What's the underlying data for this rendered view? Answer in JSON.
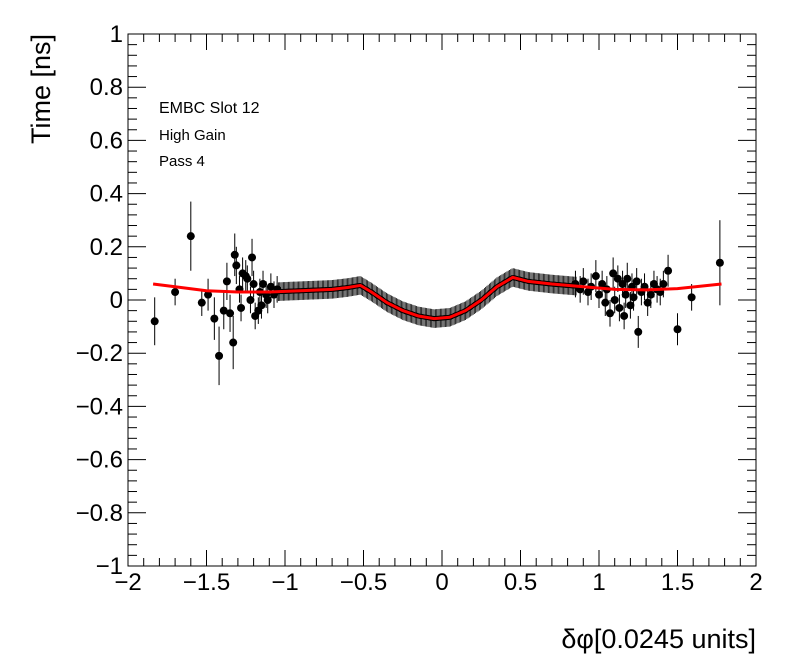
{
  "chart_data": {
    "type": "scatter",
    "xlabel": "δφ[0.0245 units]",
    "ylabel": "Time [ns]",
    "xlim": [
      -2,
      2
    ],
    "ylim": [
      -1,
      1
    ],
    "x_ticks": [
      "−2",
      "−1.5",
      "−1",
      "−0.5",
      "0",
      "0.5",
      "1",
      "1.5",
      "2"
    ],
    "y_ticks": [
      "−1",
      "−0.8",
      "−0.6",
      "−0.4",
      "−0.2",
      "0",
      "0.2",
      "0.4",
      "0.6",
      "0.8",
      "1"
    ],
    "annotations": [
      "EMBC Slot 12",
      "High Gain",
      "Pass 4"
    ],
    "marker_color": "#000000",
    "fit_color": "#ff0000",
    "series": [
      {
        "points": [
          {
            "x": -1.83,
            "y": -0.08,
            "err": 0.09
          },
          {
            "x": -1.7,
            "y": 0.03,
            "err": 0.05
          },
          {
            "x": -1.6,
            "y": 0.24,
            "err": 0.13
          },
          {
            "x": -1.53,
            "y": -0.01,
            "err": 0.05
          },
          {
            "x": -1.49,
            "y": 0.02,
            "err": 0.06
          },
          {
            "x": -1.45,
            "y": -0.07,
            "err": 0.08
          },
          {
            "x": -1.42,
            "y": -0.21,
            "err": 0.11
          },
          {
            "x": -1.39,
            "y": -0.04,
            "err": 0.07
          },
          {
            "x": -1.37,
            "y": 0.07,
            "err": 0.07
          },
          {
            "x": -1.35,
            "y": -0.05,
            "err": 0.07
          },
          {
            "x": -1.33,
            "y": -0.16,
            "err": 0.1
          },
          {
            "x": -1.32,
            "y": 0.17,
            "err": 0.08
          },
          {
            "x": -1.31,
            "y": 0.13,
            "err": 0.07
          },
          {
            "x": -1.29,
            "y": 0.04,
            "err": 0.05
          },
          {
            "x": -1.28,
            "y": -0.03,
            "err": 0.05
          },
          {
            "x": -1.27,
            "y": 0.1,
            "err": 0.06
          },
          {
            "x": -1.25,
            "y": 0.09,
            "err": 0.06
          },
          {
            "x": -1.24,
            "y": 0.08,
            "err": 0.05
          },
          {
            "x": -1.22,
            "y": 0.0,
            "err": 0.05
          },
          {
            "x": -1.21,
            "y": 0.16,
            "err": 0.07
          },
          {
            "x": -1.2,
            "y": 0.06,
            "err": 0.05
          },
          {
            "x": -1.19,
            "y": -0.06,
            "err": 0.05
          },
          {
            "x": -1.17,
            "y": -0.04,
            "err": 0.05
          },
          {
            "x": -1.16,
            "y": 0.03,
            "err": 0.05
          },
          {
            "x": -1.15,
            "y": -0.02,
            "err": 0.05
          },
          {
            "x": -1.14,
            "y": 0.06,
            "err": 0.05
          },
          {
            "x": -1.12,
            "y": 0.02,
            "err": 0.05
          },
          {
            "x": -1.11,
            "y": 0.0,
            "err": 0.05
          },
          {
            "x": -1.09,
            "y": 0.05,
            "err": 0.05
          },
          {
            "x": -1.07,
            "y": 0.02,
            "err": 0.05
          },
          {
            "x": -1.05,
            "y": 0.04,
            "err": 0.05
          },
          {
            "x": 0.85,
            "y": 0.06,
            "err": 0.05
          },
          {
            "x": 0.88,
            "y": 0.04,
            "err": 0.05
          },
          {
            "x": 0.9,
            "y": 0.07,
            "err": 0.05
          },
          {
            "x": 0.93,
            "y": 0.03,
            "err": 0.05
          },
          {
            "x": 0.95,
            "y": 0.05,
            "err": 0.05
          },
          {
            "x": 0.98,
            "y": 0.09,
            "err": 0.06
          },
          {
            "x": 1.0,
            "y": 0.02,
            "err": 0.05
          },
          {
            "x": 1.02,
            "y": 0.06,
            "err": 0.05
          },
          {
            "x": 1.04,
            "y": -0.01,
            "err": 0.05
          },
          {
            "x": 1.05,
            "y": 0.04,
            "err": 0.05
          },
          {
            "x": 1.07,
            "y": -0.05,
            "err": 0.05
          },
          {
            "x": 1.09,
            "y": 0.1,
            "err": 0.06
          },
          {
            "x": 1.1,
            "y": 0.0,
            "err": 0.05
          },
          {
            "x": 1.12,
            "y": 0.08,
            "err": 0.05
          },
          {
            "x": 1.13,
            "y": -0.03,
            "err": 0.05
          },
          {
            "x": 1.15,
            "y": 0.06,
            "err": 0.05
          },
          {
            "x": 1.16,
            "y": -0.06,
            "err": 0.05
          },
          {
            "x": 1.17,
            "y": 0.02,
            "err": 0.05
          },
          {
            "x": 1.18,
            "y": 0.08,
            "err": 0.06
          },
          {
            "x": 1.2,
            "y": -0.02,
            "err": 0.05
          },
          {
            "x": 1.21,
            "y": 0.05,
            "err": 0.05
          },
          {
            "x": 1.22,
            "y": 0.01,
            "err": 0.05
          },
          {
            "x": 1.24,
            "y": 0.07,
            "err": 0.05
          },
          {
            "x": 1.25,
            "y": -0.12,
            "err": 0.06
          },
          {
            "x": 1.27,
            "y": 0.03,
            "err": 0.05
          },
          {
            "x": 1.29,
            "y": 0.05,
            "err": 0.05
          },
          {
            "x": 1.31,
            "y": -0.01,
            "err": 0.05
          },
          {
            "x": 1.33,
            "y": 0.02,
            "err": 0.05
          },
          {
            "x": 1.35,
            "y": 0.06,
            "err": 0.05
          },
          {
            "x": 1.37,
            "y": 0.04,
            "err": 0.05
          },
          {
            "x": 1.39,
            "y": 0.03,
            "err": 0.05
          },
          {
            "x": 1.41,
            "y": 0.06,
            "err": 0.05
          },
          {
            "x": 1.44,
            "y": 0.11,
            "err": 0.06
          },
          {
            "x": 1.5,
            "y": -0.11,
            "err": 0.06
          },
          {
            "x": 1.59,
            "y": 0.01,
            "err": 0.05
          },
          {
            "x": 1.77,
            "y": 0.14,
            "err": 0.16
          }
        ]
      }
    ],
    "fit_curve": [
      {
        "x": -1.84,
        "y": 0.06
      },
      {
        "x": -1.7,
        "y": 0.05
      },
      {
        "x": -1.5,
        "y": 0.035
      },
      {
        "x": -1.3,
        "y": 0.03
      },
      {
        "x": -1.1,
        "y": 0.03
      },
      {
        "x": -0.9,
        "y": 0.035
      },
      {
        "x": -0.7,
        "y": 0.04
      },
      {
        "x": -0.6,
        "y": 0.047
      },
      {
        "x": -0.52,
        "y": 0.055
      },
      {
        "x": -0.45,
        "y": 0.03
      },
      {
        "x": -0.35,
        "y": -0.01
      },
      {
        "x": -0.25,
        "y": -0.04
      },
      {
        "x": -0.15,
        "y": -0.06
      },
      {
        "x": -0.05,
        "y": -0.07
      },
      {
        "x": 0.05,
        "y": -0.065
      },
      {
        "x": 0.15,
        "y": -0.04
      },
      {
        "x": 0.25,
        "y": 0.0
      },
      {
        "x": 0.35,
        "y": 0.05
      },
      {
        "x": 0.45,
        "y": 0.085
      },
      {
        "x": 0.55,
        "y": 0.07
      },
      {
        "x": 0.7,
        "y": 0.06
      },
      {
        "x": 0.9,
        "y": 0.05
      },
      {
        "x": 1.1,
        "y": 0.04
      },
      {
        "x": 1.3,
        "y": 0.038
      },
      {
        "x": 1.5,
        "y": 0.043
      },
      {
        "x": 1.78,
        "y": 0.06
      }
    ]
  }
}
